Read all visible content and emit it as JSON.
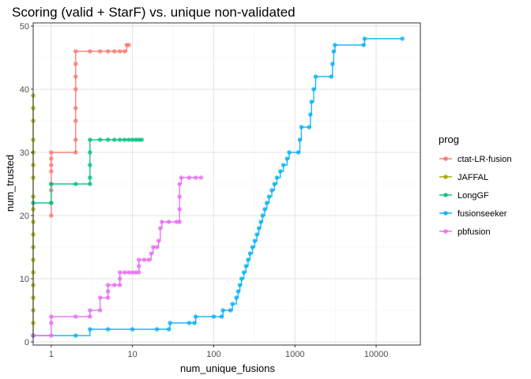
{
  "chart_data": {
    "type": "line",
    "title": "Scoring (valid + StarF) vs. unique non-validated",
    "xlabel": "num_unique_fusions",
    "ylabel": "num_trusted",
    "x_scale": "log10",
    "xlim": [
      0.6,
      35000
    ],
    "ylim": [
      -0.5,
      50.5
    ],
    "x_ticks": [
      1,
      10,
      100,
      1000,
      10000
    ],
    "x_tick_labels": [
      "1",
      "10",
      "100",
      "1000",
      "10000"
    ],
    "y_ticks": [
      0,
      10,
      20,
      30,
      40,
      50
    ],
    "y_tick_labels": [
      "0",
      "10",
      "20",
      "30",
      "40",
      "50"
    ],
    "grid": true,
    "legend": {
      "title": "prog",
      "placement": "right"
    },
    "series": [
      {
        "name": "ctat-LR-fusion",
        "color": "#F8766D",
        "points": [
          [
            1,
            20
          ],
          [
            1,
            22
          ],
          [
            1,
            24
          ],
          [
            1,
            25
          ],
          [
            1,
            27
          ],
          [
            1,
            28
          ],
          [
            1,
            29
          ],
          [
            1,
            30
          ],
          [
            2,
            30
          ],
          [
            2,
            32
          ],
          [
            2,
            35
          ],
          [
            2,
            37
          ],
          [
            2,
            40
          ],
          [
            2,
            42
          ],
          [
            2,
            44
          ],
          [
            2,
            46
          ],
          [
            3,
            46
          ],
          [
            4,
            46
          ],
          [
            5,
            46
          ],
          [
            6,
            46
          ],
          [
            7,
            46
          ],
          [
            8,
            46
          ],
          [
            8.5,
            47
          ],
          [
            9,
            47
          ]
        ]
      },
      {
        "name": "JAFFAL",
        "color": "#A3A500",
        "points": [
          [
            0.6,
            1
          ],
          [
            0.6,
            3
          ],
          [
            0.6,
            5
          ],
          [
            0.6,
            7
          ],
          [
            0.6,
            9
          ],
          [
            0.6,
            11
          ],
          [
            0.6,
            13
          ],
          [
            0.6,
            15
          ],
          [
            0.6,
            17
          ],
          [
            0.6,
            19
          ],
          [
            0.6,
            21
          ],
          [
            0.6,
            23
          ],
          [
            0.6,
            26
          ],
          [
            0.6,
            28
          ],
          [
            0.6,
            30
          ],
          [
            0.6,
            32
          ],
          [
            0.6,
            35
          ],
          [
            0.6,
            37
          ],
          [
            0.6,
            39
          ]
        ]
      },
      {
        "name": "LongGF",
        "color": "#00BF7D",
        "points": [
          [
            0.6,
            22
          ],
          [
            1,
            22
          ],
          [
            1,
            25
          ],
          [
            2,
            25
          ],
          [
            3,
            25
          ],
          [
            3,
            26
          ],
          [
            3,
            28
          ],
          [
            3,
            30
          ],
          [
            3,
            32
          ],
          [
            4,
            32
          ],
          [
            5,
            32
          ],
          [
            6,
            32
          ],
          [
            7,
            32
          ],
          [
            8,
            32
          ],
          [
            9,
            32
          ],
          [
            10,
            32
          ],
          [
            11,
            32
          ],
          [
            12,
            32
          ],
          [
            13,
            32
          ]
        ]
      },
      {
        "name": "fusionseeker",
        "color": "#00B0F6",
        "points": [
          [
            0.6,
            1
          ],
          [
            2,
            1
          ],
          [
            3,
            2
          ],
          [
            5,
            2
          ],
          [
            10,
            2
          ],
          [
            20,
            2
          ],
          [
            28,
            2
          ],
          [
            29,
            3
          ],
          [
            50,
            3
          ],
          [
            58,
            3
          ],
          [
            60,
            4
          ],
          [
            100,
            4
          ],
          [
            125,
            4
          ],
          [
            130,
            5
          ],
          [
            160,
            5
          ],
          [
            170,
            6
          ],
          [
            190,
            7
          ],
          [
            200,
            8
          ],
          [
            210,
            9
          ],
          [
            220,
            10
          ],
          [
            235,
            11
          ],
          [
            250,
            12
          ],
          [
            265,
            13
          ],
          [
            280,
            14
          ],
          [
            300,
            15
          ],
          [
            320,
            16
          ],
          [
            340,
            17
          ],
          [
            360,
            18
          ],
          [
            380,
            19
          ],
          [
            400,
            20
          ],
          [
            425,
            21
          ],
          [
            450,
            22
          ],
          [
            480,
            23
          ],
          [
            520,
            24
          ],
          [
            560,
            25
          ],
          [
            600,
            26
          ],
          [
            660,
            27
          ],
          [
            720,
            28
          ],
          [
            800,
            29
          ],
          [
            850,
            30
          ],
          [
            1100,
            30
          ],
          [
            1150,
            32
          ],
          [
            1200,
            34
          ],
          [
            1500,
            34
          ],
          [
            1550,
            36
          ],
          [
            1600,
            38
          ],
          [
            1700,
            40
          ],
          [
            1800,
            42
          ],
          [
            2800,
            42
          ],
          [
            2900,
            44
          ],
          [
            3000,
            46
          ],
          [
            3100,
            47
          ],
          [
            7000,
            47
          ],
          [
            7200,
            48
          ],
          [
            21000,
            48
          ]
        ]
      },
      {
        "name": "pbfusion",
        "color": "#E76BF3",
        "points": [
          [
            0.6,
            1
          ],
          [
            1,
            1
          ],
          [
            1,
            3
          ],
          [
            1,
            4
          ],
          [
            2,
            4
          ],
          [
            3,
            4
          ],
          [
            3,
            5
          ],
          [
            4,
            5
          ],
          [
            4,
            7
          ],
          [
            5,
            7
          ],
          [
            5,
            8
          ],
          [
            5,
            9
          ],
          [
            6,
            9
          ],
          [
            7,
            9
          ],
          [
            7,
            10
          ],
          [
            7,
            11
          ],
          [
            8,
            11
          ],
          [
            9,
            11
          ],
          [
            10,
            11
          ],
          [
            11,
            11
          ],
          [
            12,
            11
          ],
          [
            12,
            12
          ],
          [
            12,
            13
          ],
          [
            14,
            13
          ],
          [
            16,
            13
          ],
          [
            17,
            14
          ],
          [
            18,
            15
          ],
          [
            20,
            15
          ],
          [
            21,
            16
          ],
          [
            22,
            18
          ],
          [
            23,
            19
          ],
          [
            28,
            19
          ],
          [
            35,
            19
          ],
          [
            38,
            19
          ],
          [
            38,
            21
          ],
          [
            38,
            23
          ],
          [
            38,
            25
          ],
          [
            40,
            26
          ],
          [
            50,
            26
          ],
          [
            60,
            26
          ],
          [
            70,
            26
          ]
        ]
      }
    ]
  }
}
